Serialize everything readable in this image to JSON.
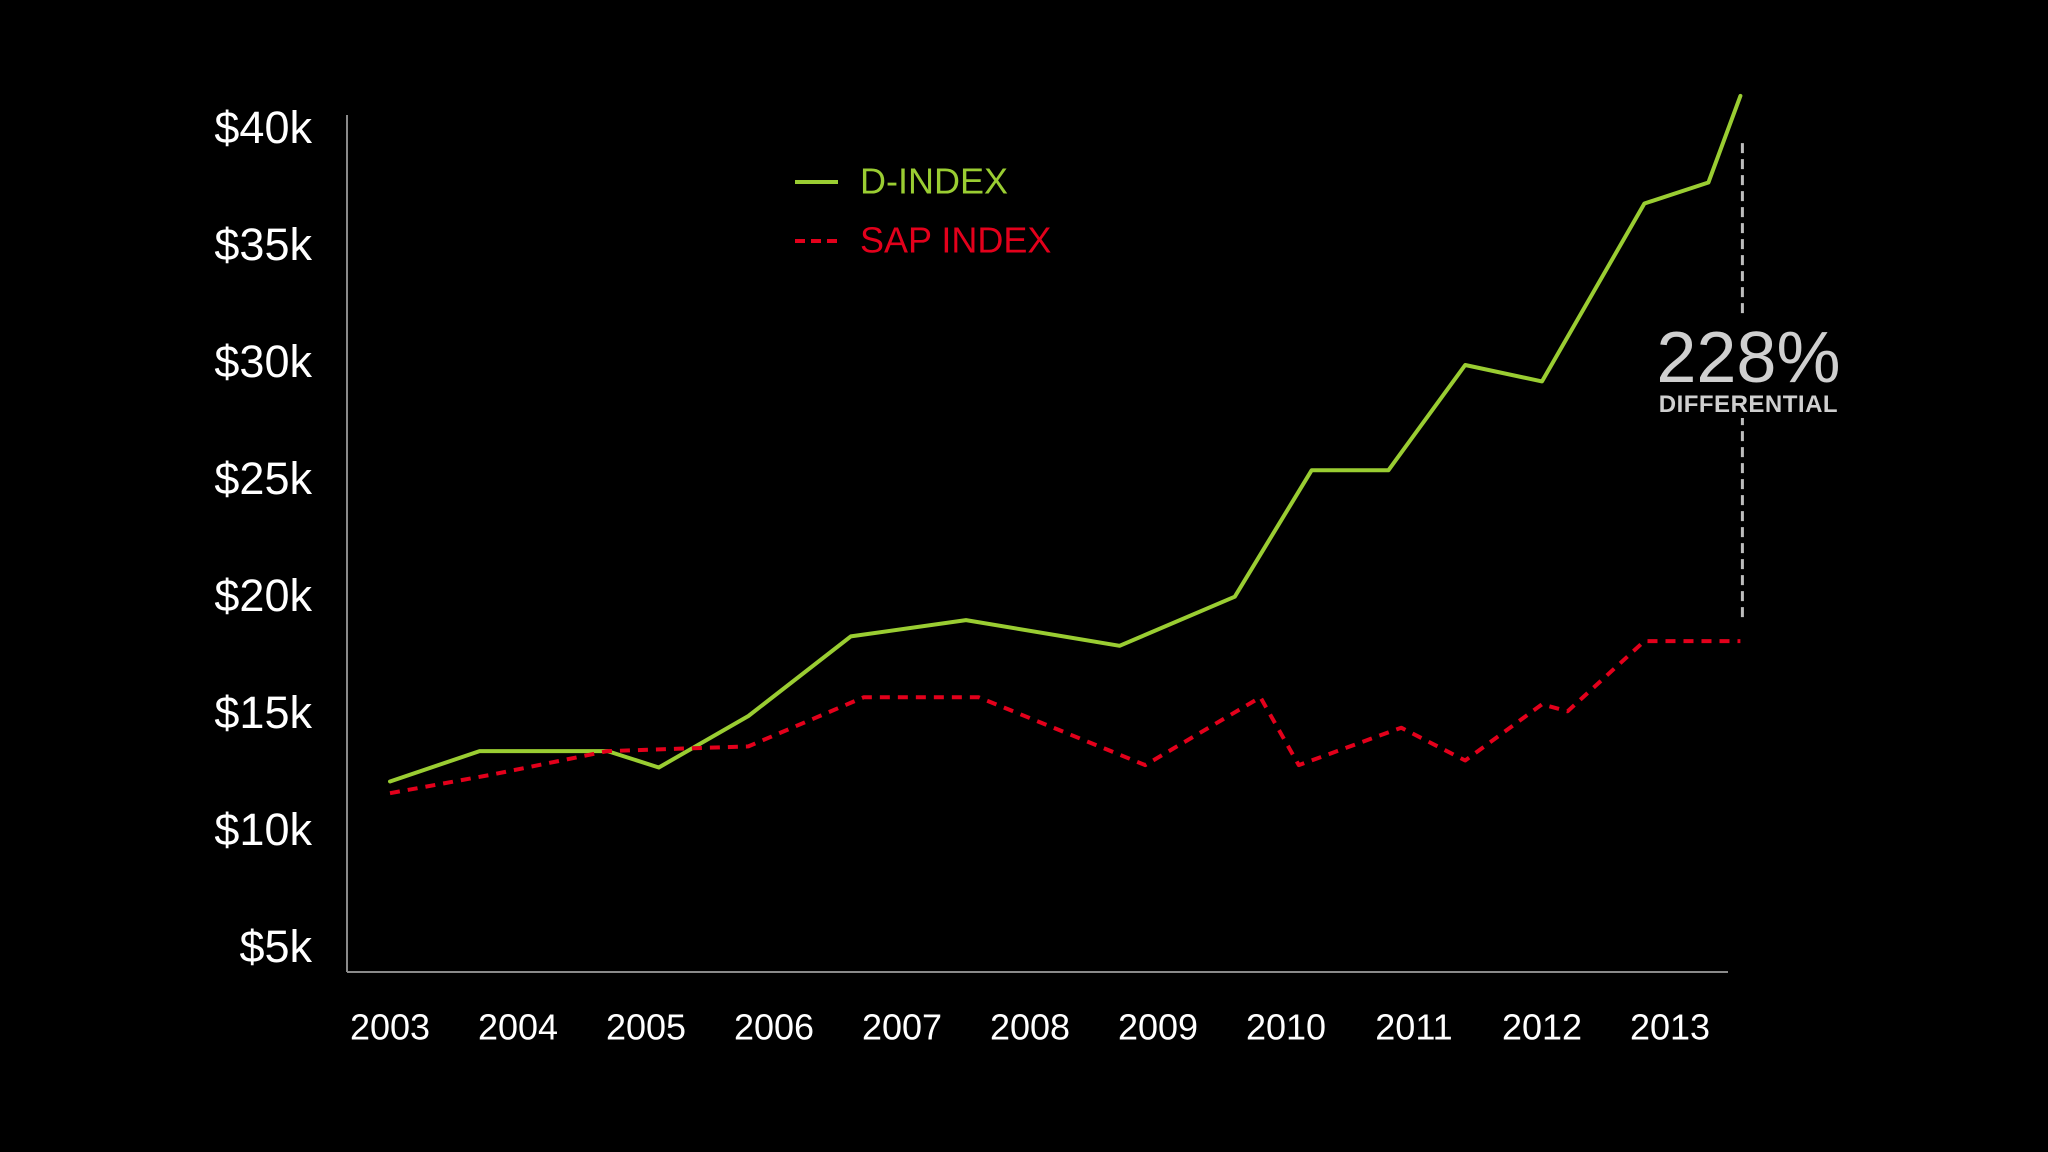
{
  "chart_data": {
    "type": "line",
    "title": "",
    "xlabel": "",
    "ylabel": "",
    "x_tick_labels": [
      "2003",
      "2004",
      "2005",
      "2006",
      "2007",
      "2008",
      "2009",
      "2010",
      "2011",
      "2012",
      "2013"
    ],
    "y_tick_labels": [
      "$5k",
      "$10k",
      "$15k",
      "$20k",
      "$25k",
      "$30k",
      "$35k",
      "$40k"
    ],
    "y_tick_values": [
      5000,
      10000,
      15000,
      20000,
      25000,
      30000,
      35000,
      40000
    ],
    "xlim": [
      2003,
      2013.4
    ],
    "ylim": [
      4000,
      41500
    ],
    "grid": false,
    "legend_position": "top-center",
    "series": [
      {
        "name": "D-INDEX",
        "color": "#9acd32",
        "style": "solid",
        "x": [
          2003.0,
          2003.7,
          2004.7,
          2005.1,
          2005.8,
          2006.6,
          2007.5,
          2008.7,
          2009.6,
          2010.2,
          2010.8,
          2011.4,
          2012.0,
          2012.8,
          2013.3,
          2013.55
        ],
        "y": [
          12200,
          13500,
          13500,
          12800,
          15000,
          18400,
          19100,
          18000,
          20100,
          25500,
          25500,
          30000,
          29300,
          36900,
          37800,
          41500
        ]
      },
      {
        "name": "SAP INDEX",
        "color": "#e3001b",
        "style": "dashed",
        "x": [
          2003.0,
          2003.8,
          2004.7,
          2005.8,
          2006.7,
          2007.6,
          2008.9,
          2009.8,
          2010.1,
          2010.9,
          2011.4,
          2012.0,
          2012.2,
          2012.8,
          2013.55
        ],
        "y": [
          11700,
          12500,
          13500,
          13700,
          15800,
          15800,
          12900,
          15800,
          12900,
          14500,
          13100,
          15500,
          15200,
          18200,
          18200
        ]
      }
    ],
    "annotations": [
      {
        "value": "228%",
        "label": "DIFFERENTIAL",
        "x": 2013.55,
        "y_from": 18200,
        "y_to": 41500
      }
    ]
  }
}
